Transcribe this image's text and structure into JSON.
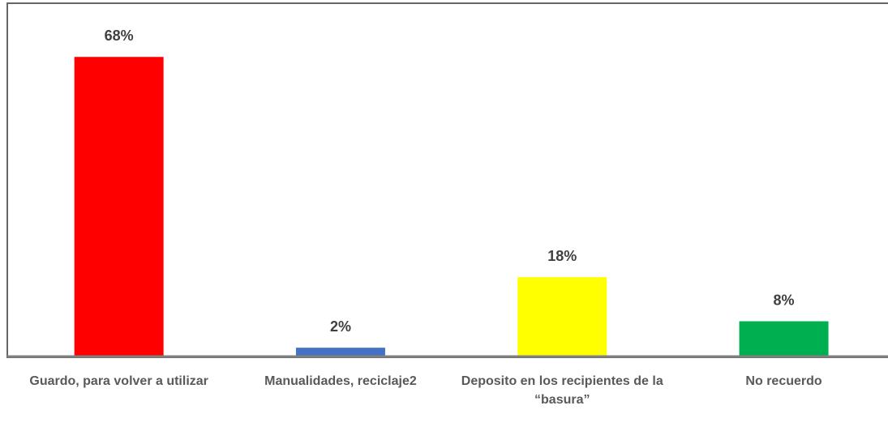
{
  "chart_data": {
    "type": "bar",
    "categories": [
      "Guardo, para volver a utilizar",
      "Manualidades, reciclaje2",
      "Deposito en los recipientes de la “basura”",
      "No recuerdo"
    ],
    "values": [
      68,
      2,
      18,
      8
    ],
    "value_labels": [
      "68%",
      "2%",
      "18%",
      "8%"
    ],
    "colors": [
      "#ff0000",
      "#4472c4",
      "#ffff00",
      "#00b050"
    ],
    "ylim": [
      0,
      80
    ]
  }
}
